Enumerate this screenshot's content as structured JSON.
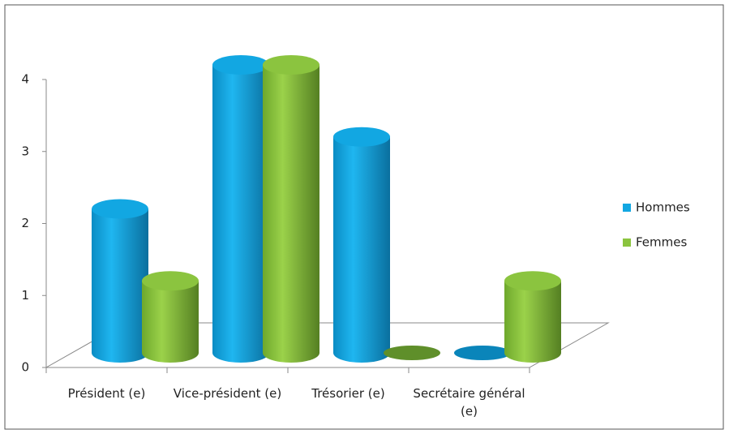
{
  "chart_data": {
    "type": "bar3d",
    "categories": [
      "Président (e)",
      "Vice-président (e)",
      "Trésorier (e)",
      "Secrétaire général (e)"
    ],
    "series": [
      {
        "name": "Hommes",
        "color": "#12a7e2",
        "values": [
          2,
          4,
          3,
          0
        ]
      },
      {
        "name": "Femmes",
        "color": "#8bc43f",
        "values": [
          1,
          4,
          0,
          1
        ]
      }
    ],
    "ylim": [
      0,
      4
    ],
    "yticks": [
      0,
      1,
      2,
      3,
      4
    ],
    "legend": "right"
  }
}
